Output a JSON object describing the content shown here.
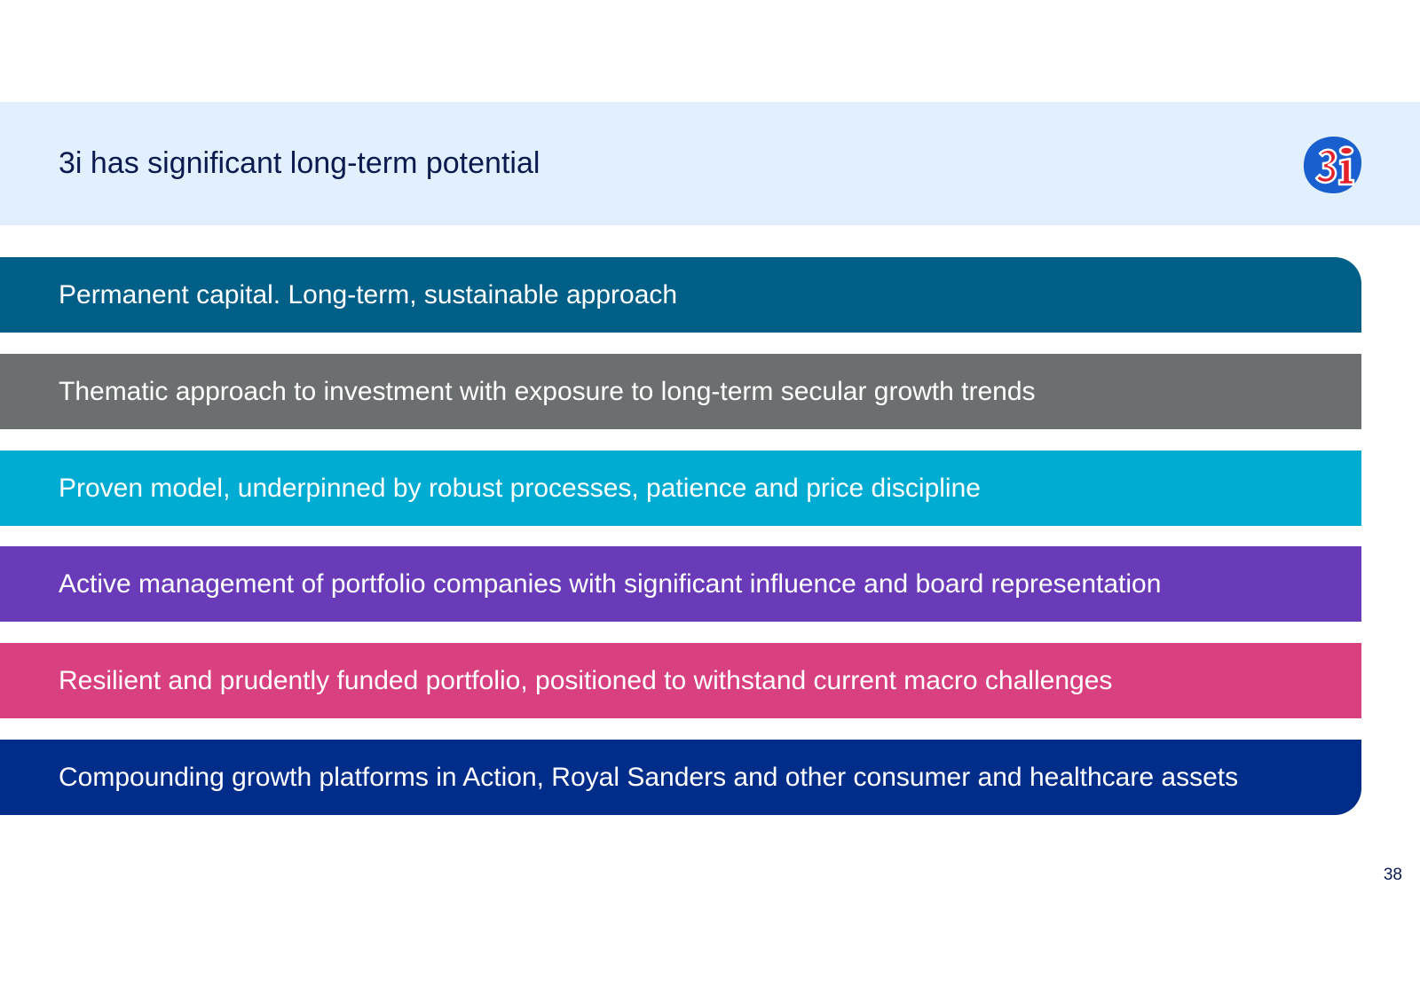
{
  "slide": {
    "title": "3i has significant long-term potential",
    "page_number": "38",
    "logo": {
      "icon": "3i-logo-icon",
      "text": "3i",
      "colors": {
        "background": "#1a5fcf",
        "text_fill": "#e4202a",
        "outline": "#ffffff"
      }
    },
    "header_background": "#e1f0fc",
    "title_color": "#0a1a4f",
    "bars": [
      {
        "text": "Permanent capital. Long-term, sustainable approach",
        "color": "#005f87"
      },
      {
        "text": "Thematic approach to investment with exposure to long-term secular growth trends",
        "color": "#6c6f70"
      },
      {
        "text": "Proven model, underpinned by robust processes, patience and price discipline",
        "color": "#00acd2"
      },
      {
        "text": "Active management of portfolio companies with significant influence and board representation",
        "color": "#6a3bb8"
      },
      {
        "text": "Resilient and prudently funded portfolio, positioned to withstand current macro challenges",
        "color": "#d9407f"
      },
      {
        "text": "Compounding growth platforms in Action, Royal Sanders and other consumer and healthcare assets",
        "color": "#002d8a"
      }
    ]
  }
}
